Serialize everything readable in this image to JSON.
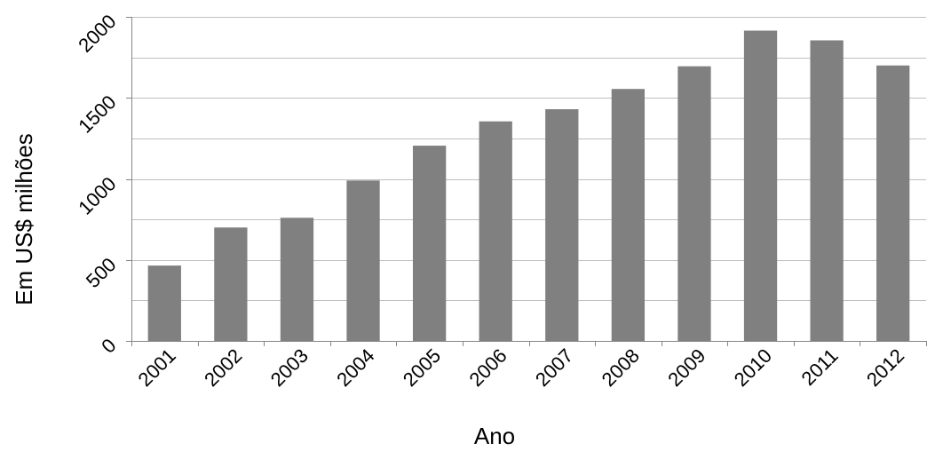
{
  "chart_data": {
    "type": "bar",
    "categories": [
      "2001",
      "2002",
      "2003",
      "2004",
      "2005",
      "2006",
      "2007",
      "2008",
      "2009",
      "2010",
      "2011",
      "2012"
    ],
    "values": [
      465,
      700,
      760,
      990,
      1205,
      1355,
      1430,
      1555,
      1695,
      1915,
      1855,
      1700
    ],
    "xlabel": "Ano",
    "ylabel": "Em US$ milhões",
    "ylim": [
      0,
      2000
    ],
    "yticks": [
      0,
      500,
      1000,
      1500,
      2000
    ],
    "grid": true,
    "legend": "none",
    "colors": {
      "bar": "#808080",
      "grid": "#bfbfbf",
      "axis": "#868686"
    }
  }
}
